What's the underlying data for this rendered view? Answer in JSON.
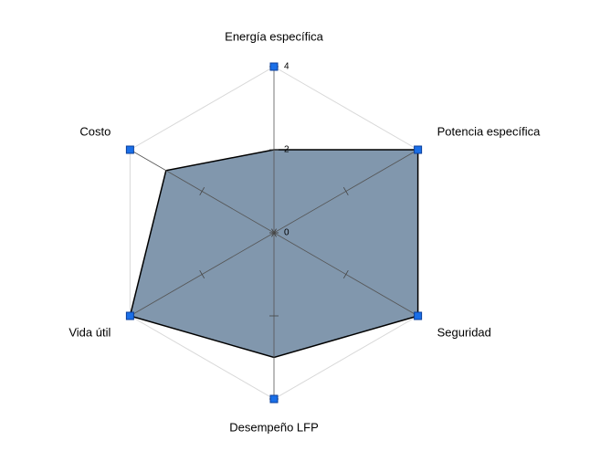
{
  "chart_data": {
    "type": "radar",
    "categories": [
      "Energía específica",
      "Potencia específica",
      "Seguridad",
      "Desempeño LFP",
      "Vida útil",
      "Costo"
    ],
    "values": [
      2,
      4,
      4,
      3,
      4,
      3
    ],
    "color": "#8197ad",
    "ylim": [
      0,
      4
    ],
    "yticks": [
      0,
      2,
      4
    ],
    "grid": true
  }
}
